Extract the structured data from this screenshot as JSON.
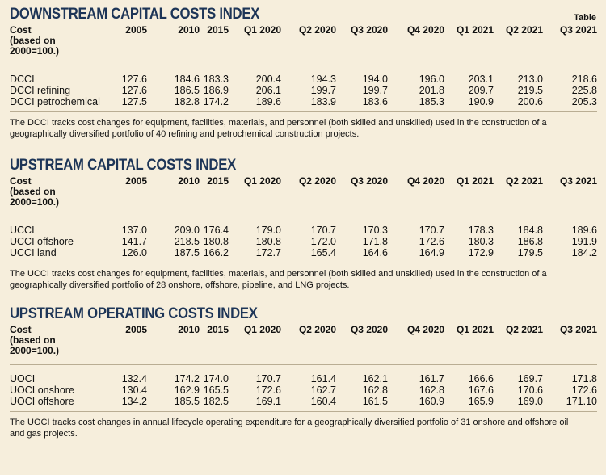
{
  "corner_label": "Table",
  "sections": [
    {
      "title": "DOWNSTREAM CAPITAL COSTS INDEX",
      "header_label": [
        "Cost",
        "(based on",
        "2000=100.)"
      ],
      "columns": [
        "2005",
        "2010",
        "2015",
        "Q1 2020",
        "Q2 2020",
        "Q3 2020",
        "Q4 2020",
        "Q1 2021",
        "Q2 2021",
        "Q3 2021"
      ],
      "rows": [
        [
          "DCCI",
          "127.6",
          "184.6",
          "183.3",
          "200.4",
          "194.3",
          "194.0",
          "196.0",
          "203.1",
          "213.0",
          "218.6"
        ],
        [
          "DCCI refining",
          "127.6",
          "186.5",
          "186.9",
          "206.1",
          "199.7",
          "199.7",
          "201.8",
          "209.7",
          "219.5",
          "225.8"
        ],
        [
          "DCCI petrochemical",
          "127.5",
          "182.8",
          "174.2",
          "189.6",
          "183.9",
          "183.6",
          "185.3",
          "190.9",
          "200.6",
          "205.3"
        ]
      ],
      "note": "The DCCI tracks cost changes for equipment, facilities, materials, and personnel (both skilled and unskilled) used in the construction of a geographically diversified portfolio of 40 refining and petrochemical construction projects."
    },
    {
      "title": "UPSTREAM CAPITAL COSTS INDEX",
      "header_label": [
        "Cost",
        "(based on",
        "2000=100.)"
      ],
      "columns": [
        "2005",
        "2010",
        "2015",
        "Q1 2020",
        "Q2 2020",
        "Q3 2020",
        "Q4 2020",
        "Q1 2021",
        "Q2 2021",
        "Q3 2021"
      ],
      "rows": [
        [
          "UCCI",
          "137.0",
          "209.0",
          "176.4",
          "179.0",
          "170.7",
          "170.3",
          "170.7",
          "178.3",
          "184.8",
          "189.6"
        ],
        [
          "UCCI offshore",
          "141.7",
          "218.5",
          "180.8",
          "180.8",
          "172.0",
          "171.8",
          "172.6",
          "180.3",
          "186.8",
          "191.9"
        ],
        [
          "UCCI land",
          "126.0",
          "187.5",
          "166.2",
          "172.7",
          "165.4",
          "164.6",
          "164.9",
          "172.9",
          "179.5",
          "184.2"
        ]
      ],
      "note": "The UCCI tracks cost changes for equipment, facilities, materials, and personnel (both skilled and unskilled) used in the construction of a geographically diversified portfolio of 28 onshore, offshore, pipeline, and LNG projects."
    },
    {
      "title": "UPSTREAM OPERATING COSTS INDEX",
      "header_label": [
        "Cost",
        "(based on",
        "2000=100.)"
      ],
      "columns": [
        "2005",
        "2010",
        "2015",
        "Q1 2020",
        "Q2 2020",
        "Q3 2020",
        "Q4 2020",
        "Q1 2021",
        "Q2 2021",
        "Q3 2021"
      ],
      "rows": [
        [
          "UOCI",
          "132.4",
          "174.2",
          "174.0",
          "170.7",
          "161.4",
          "162.1",
          "161.7",
          "166.6",
          "169.7",
          "171.8"
        ],
        [
          "UOCI onshore",
          "130.4",
          "162.9",
          "165.5",
          "172.6",
          "162.7",
          "162.8",
          "162.8",
          "167.6",
          "170.6",
          "172.6"
        ],
        [
          "UOCI offshore",
          "134.2",
          "185.5",
          "182.5",
          "169.1",
          "160.4",
          "161.5",
          "160.9",
          "165.9",
          "169.0",
          "171.10"
        ]
      ],
      "note": "The UOCI tracks cost changes in annual lifecycle operating expenditure for a geographically diversified portfolio of 31 onshore and offshore oil and gas projects."
    }
  ]
}
